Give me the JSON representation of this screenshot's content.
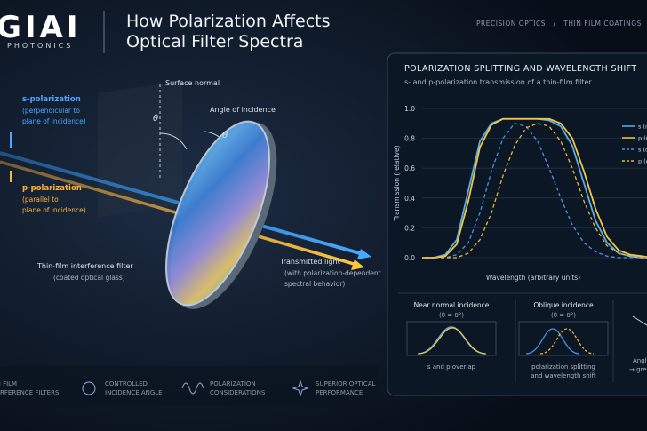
{
  "header": {
    "logo": "GIAI",
    "brand": "PHOTONICS",
    "title_lines": [
      "How Polarization Affects",
      "Optical Filter Spectra"
    ],
    "nav": "PRECISION OPTICS   /   THIN FILM COATINGS   /   LIGHT"
  },
  "illustration": {
    "s_pol": [
      "s-polarization",
      "(perpendicular to",
      "plane of incidence)"
    ],
    "p_pol": [
      "p-polarization",
      "(parallel to",
      "plane of incidence)"
    ],
    "surface_normal": "Surface normal",
    "angle": "Angle of incidence",
    "theta": "θ",
    "filter": [
      "Thin-film interference filter",
      "(coated optical glass)"
    ],
    "transmitted": [
      "Transmitted light",
      "(with polarization-dependent",
      "spectral behavior)"
    ]
  },
  "features": [
    [
      "THIN FILM",
      "INTERFERENCE FILTERS"
    ],
    [
      "CONTROLLED",
      "INCIDENCE ANGLE"
    ],
    [
      "POLARIZATION",
      "CONSIDERATIONS"
    ],
    [
      "SUPERIOR OPTICAL",
      "PERFORMANCE"
    ]
  ],
  "chart_data": {
    "type": "line",
    "title": "POLARIZATION SPLITTING AND WAVELENGTH SHIFT",
    "subtitle": "s- and p-polarization transmission of a thin-film filter",
    "x_label": "Wavelength (arbitrary units)",
    "y_label": "Transmission (relative)",
    "x": [
      0,
      5,
      10,
      15,
      20,
      25,
      30,
      35,
      40,
      45,
      50,
      55,
      60,
      65,
      70,
      75,
      80,
      85,
      90,
      95,
      100
    ],
    "series": [
      {
        "name": "s (near normal)",
        "color": "#5aaee8",
        "dash": false,
        "values": [
          0,
          0,
          0.02,
          0.12,
          0.45,
          0.78,
          0.9,
          0.93,
          0.93,
          0.93,
          0.93,
          0.92,
          0.88,
          0.75,
          0.5,
          0.25,
          0.1,
          0.03,
          0.01,
          0,
          0
        ]
      },
      {
        "name": "p (near normal)",
        "color": "#f2c443",
        "dash": false,
        "values": [
          0,
          0,
          0.01,
          0.09,
          0.38,
          0.74,
          0.89,
          0.93,
          0.93,
          0.93,
          0.93,
          0.93,
          0.9,
          0.8,
          0.58,
          0.33,
          0.14,
          0.05,
          0.02,
          0.01,
          0
        ]
      },
      {
        "name": "s (oblique incidence)",
        "color": "#4f8fe0",
        "dash": true,
        "values": [
          0,
          0,
          0,
          0.02,
          0.1,
          0.3,
          0.58,
          0.8,
          0.9,
          0.88,
          0.78,
          0.6,
          0.4,
          0.22,
          0.1,
          0.04,
          0.01,
          0,
          0,
          0,
          0
        ]
      },
      {
        "name": "p (oblique incidence)",
        "color": "#e8b53a",
        "dash": true,
        "values": [
          0,
          0,
          0,
          0,
          0.03,
          0.12,
          0.3,
          0.55,
          0.75,
          0.87,
          0.9,
          0.88,
          0.78,
          0.6,
          0.38,
          0.2,
          0.08,
          0.03,
          0.01,
          0,
          0
        ]
      }
    ],
    "xlim": [
      0,
      100
    ],
    "ylim": [
      0,
      1
    ],
    "yticks": [
      {
        "value": 0,
        "label": "0.0"
      },
      {
        "value": 0.2,
        "label": "0.2"
      },
      {
        "value": 0.4,
        "label": "0.4"
      },
      {
        "value": 0.6,
        "label": "0.6"
      },
      {
        "value": 0.8,
        "label": "0.8"
      },
      {
        "value": 1,
        "label": "1.0"
      }
    ],
    "grid": true,
    "legend": "top-right"
  },
  "insets": [
    {
      "title": "Near normal incidence",
      "condition": "(θ = 0°)",
      "caption": [
        "s and p overlap"
      ]
    },
    {
      "title": "Oblique incidence",
      "condition": "(θ = 0°)",
      "caption": [
        "polarization splitting",
        "and wavelength shift"
      ]
    },
    {
      "title": "",
      "condition": "",
      "caption": [
        "Angle",
        "→ greater"
      ]
    }
  ]
}
